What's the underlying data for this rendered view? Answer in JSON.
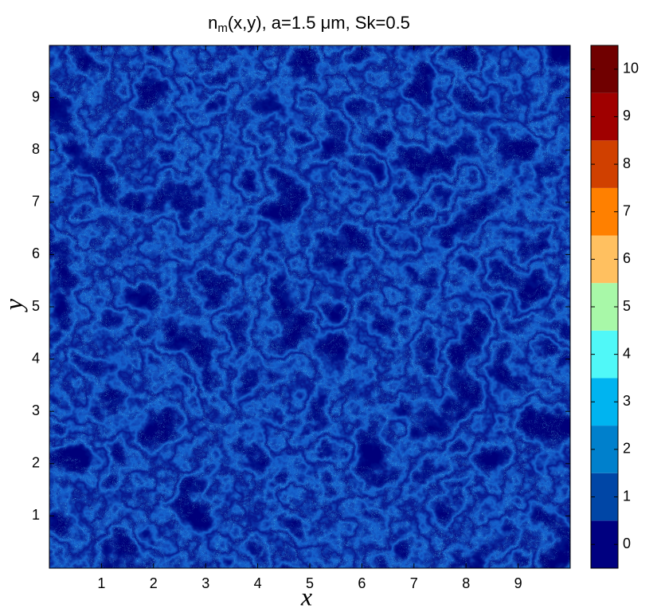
{
  "chart_data": {
    "type": "heatmap",
    "title_parts": [
      "n",
      "m",
      "(x,y), a=1.5 μm, Sk=0.5"
    ],
    "xlabel": "x",
    "ylabel": "y",
    "xlim": [
      0,
      10
    ],
    "ylim": [
      0,
      10
    ],
    "xticks": [
      1,
      2,
      3,
      4,
      5,
      6,
      7,
      8,
      9
    ],
    "yticks": [
      1,
      2,
      3,
      4,
      5,
      6,
      7,
      8,
      9
    ],
    "colorbar": {
      "clim": [
        -0.5,
        10.5
      ],
      "ticks": [
        0,
        1,
        2,
        3,
        4,
        5,
        6,
        7,
        8,
        9,
        10
      ],
      "colors": [
        "#000080",
        "#0046a6",
        "#0080cc",
        "#00b4f0",
        "#50f8f8",
        "#a8f8a8",
        "#ffc060",
        "#ff8000",
        "#d04000",
        "#a00000",
        "#700000"
      ]
    }
  }
}
